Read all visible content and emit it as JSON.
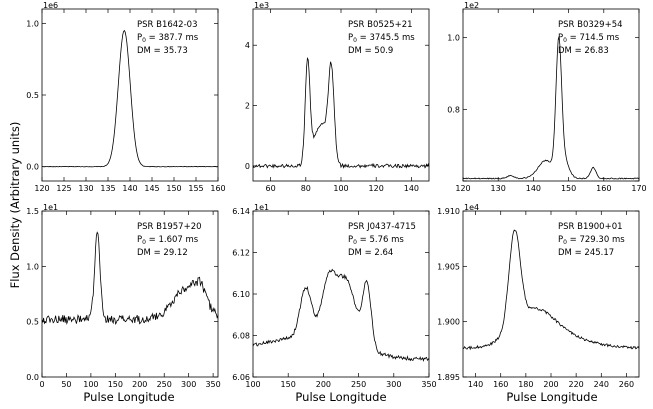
{
  "figure": {
    "ylabel": "Flux Density (Arbitrary units)",
    "xlabel": "Pulse Longitude"
  },
  "chart_data": [
    {
      "type": "line",
      "multiplier": "1e6",
      "info": [
        "PSR B1642-03",
        "P",
        "0",
        " = 387.7 ms",
        "DM = 35.73"
      ],
      "xlim": [
        120,
        160
      ],
      "ylim": [
        -0.1,
        1.1
      ],
      "xticks": [
        120,
        125,
        130,
        135,
        140,
        145,
        150,
        155,
        160
      ],
      "yticks": [
        0.0,
        0.5,
        1.0
      ],
      "yticklabels": [
        "0.0",
        "0.5",
        "1.0"
      ],
      "noise": 0.0015,
      "baseline": 0.0,
      "components": [
        [
          138.7,
          1.35,
          0.95
        ]
      ],
      "extra_points": [
        [
          121,
          0.0
        ],
        [
          134.5,
          0.01
        ],
        [
          136,
          0.09
        ],
        [
          137,
          0.38
        ],
        [
          138.2,
          0.82
        ],
        [
          138.7,
          0.95
        ],
        [
          139.3,
          0.82
        ],
        [
          140.5,
          0.4
        ],
        [
          142,
          0.05
        ],
        [
          144,
          0.005
        ]
      ]
    },
    {
      "type": "line",
      "multiplier": "1e3",
      "info": [
        "PSR B0525+21",
        "P",
        "0",
        " = 3745.5 ms",
        "DM = 50.9"
      ],
      "xlim": [
        50,
        150
      ],
      "ylim": [
        -0.5,
        5.2
      ],
      "xticks": [
        60,
        80,
        100,
        120,
        140
      ],
      "yticks": [
        0,
        2,
        4
      ],
      "yticklabels": [
        "0",
        "2",
        "4"
      ],
      "noise": 0.06,
      "baseline": 0.0,
      "components": [
        [
          81.0,
          1.3,
          3.3
        ],
        [
          94.5,
          1.6,
          2.9
        ],
        [
          86,
          3.5,
          0.9
        ],
        [
          91,
          3.0,
          0.9
        ]
      ],
      "extra_points": []
    },
    {
      "type": "line",
      "multiplier": "1e2",
      "info": [
        "PSR B0329+54",
        "P",
        "0",
        " = 714.5 ms",
        "DM = 26.83"
      ],
      "xlim": [
        120,
        170
      ],
      "ylim": [
        0.6,
        1.08
      ],
      "xticks": [
        120,
        130,
        140,
        150,
        160,
        170
      ],
      "yticks": [
        0.6,
        0.8,
        1.0
      ],
      "yticklabels": [
        "",
        "0.8",
        "1.0"
      ],
      "noise": 0.0015,
      "baseline": 0.607,
      "components": [
        [
          133.5,
          1.0,
          0.008
        ],
        [
          143.5,
          2.2,
          0.05
        ],
        [
          147.2,
          0.8,
          0.36
        ],
        [
          148.8,
          1.3,
          0.05
        ],
        [
          157.0,
          0.8,
          0.03
        ]
      ],
      "extra_points": []
    },
    {
      "type": "line",
      "multiplier": "1e1",
      "info": [
        "PSR B1957+20",
        "P",
        "0",
        " = 1.607 ms",
        "DM = 29.12"
      ],
      "xlim": [
        0,
        360
      ],
      "ylim": [
        0.0,
        1.5
      ],
      "xticks": [
        0,
        50,
        100,
        150,
        200,
        250,
        300,
        350
      ],
      "yticks": [
        0.0,
        0.5,
        1.0,
        1.5
      ],
      "yticklabels": [
        "0.0",
        "0.5",
        "1.0",
        "1.5"
      ],
      "noise": 0.04,
      "baseline": 0.52,
      "components": [
        [
          113,
          5.5,
          0.78
        ],
        [
          300,
          30,
          0.3
        ],
        [
          325,
          10,
          0.12
        ]
      ],
      "extra_points": []
    },
    {
      "type": "line",
      "multiplier": "1e1",
      "info": [
        "PSR J0437-4715",
        "P",
        "0",
        " = 5.76 ms",
        "DM = 2.64"
      ],
      "xlim": [
        100,
        350
      ],
      "ylim": [
        6.06,
        6.14
      ],
      "xticks": [
        100,
        150,
        200,
        250,
        300,
        350
      ],
      "yticks": [
        6.06,
        6.08,
        6.1,
        6.12,
        6.14
      ],
      "yticklabels": [
        "6.06",
        "6.08",
        "6.10",
        "6.12",
        "6.14"
      ],
      "noise": 0.0009,
      "baseline": 6.0685,
      "components": [
        [
          140,
          60,
          0.008
        ],
        [
          175,
          8,
          0.024
        ],
        [
          207,
          10,
          0.025
        ],
        [
          232,
          14,
          0.03
        ],
        [
          262,
          6,
          0.03
        ],
        [
          215,
          45,
          0.006
        ]
      ],
      "extra_points": []
    },
    {
      "type": "line",
      "multiplier": "1e4",
      "info": [
        "PSR B1900+01",
        "P",
        "0",
        " = 729.30 ms",
        "DM = 245.17"
      ],
      "xlim": [
        130,
        270
      ],
      "ylim": [
        1.895,
        1.91
      ],
      "xticks": [
        140,
        160,
        180,
        200,
        220,
        240,
        260
      ],
      "yticks": [
        1.895,
        1.9,
        1.905,
        1.91
      ],
      "yticklabels": [
        "1.895",
        "1.900",
        "1.905",
        "1.910"
      ],
      "noise": 0.00012,
      "baseline": 1.8976,
      "components": [
        [
          171,
          4.5,
          0.0085
        ],
        [
          186,
          16,
          0.0028
        ],
        [
          205,
          25,
          0.001
        ]
      ],
      "extra_points": []
    }
  ]
}
